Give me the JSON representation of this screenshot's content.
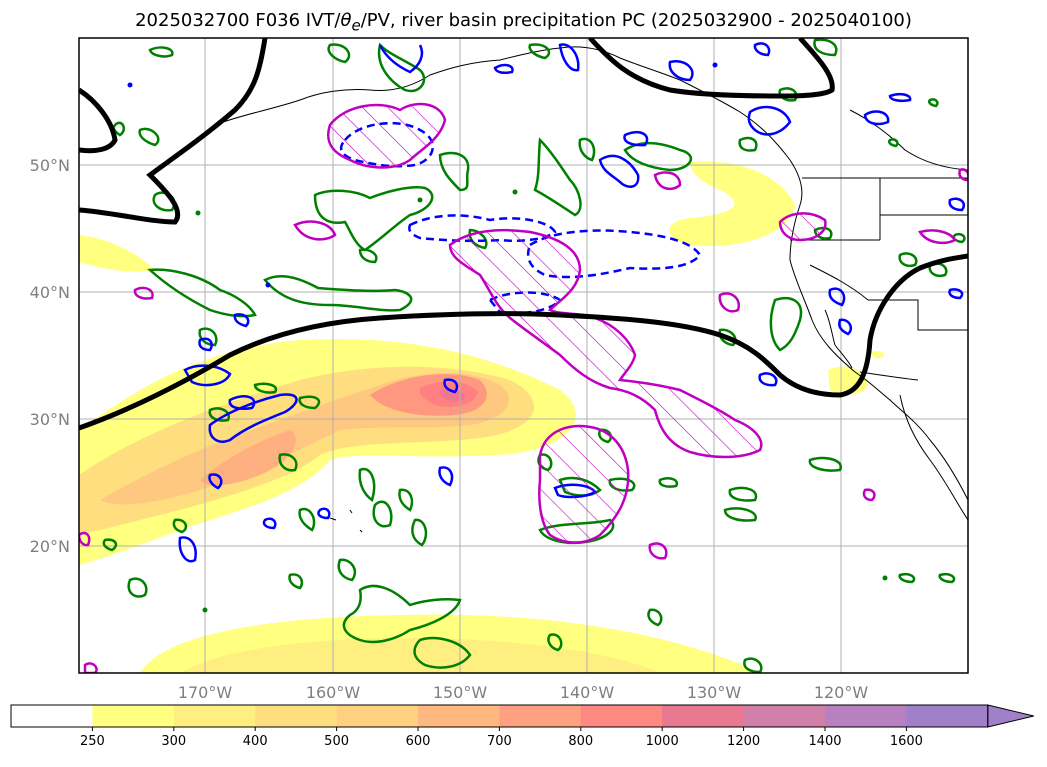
{
  "title": {
    "prefix": "2025032700 F036 IVT/",
    "theta": "θ",
    "theta_sub": "e",
    "suffix": "/PV, river basin precipitation PC (2025032900 - 2025040100)"
  },
  "lat_labels": [
    "50°N",
    "40°N",
    "30°N",
    "20°N"
  ],
  "lon_labels": [
    "170°W",
    "160°W",
    "150°W",
    "140°W",
    "130°W",
    "120°W"
  ],
  "colorbar": {
    "levels": [
      "250",
      "300",
      "400",
      "500",
      "600",
      "700",
      "800",
      "1000",
      "1200",
      "1400",
      "1600"
    ],
    "colors": [
      "#ffffff",
      "#ffff80",
      "#ffee80",
      "#ffde80",
      "#ffd080",
      "#ffb880",
      "#ffa080",
      "#ff8880",
      "#e87890",
      "#d080a8",
      "#b880c0",
      "#a080c8",
      "#a080c8"
    ]
  },
  "contour_colors": {
    "pv": "#000000",
    "positive_pc": "#008000",
    "negative_pc": "#0000ff",
    "theta_e": "#c000c0"
  }
}
